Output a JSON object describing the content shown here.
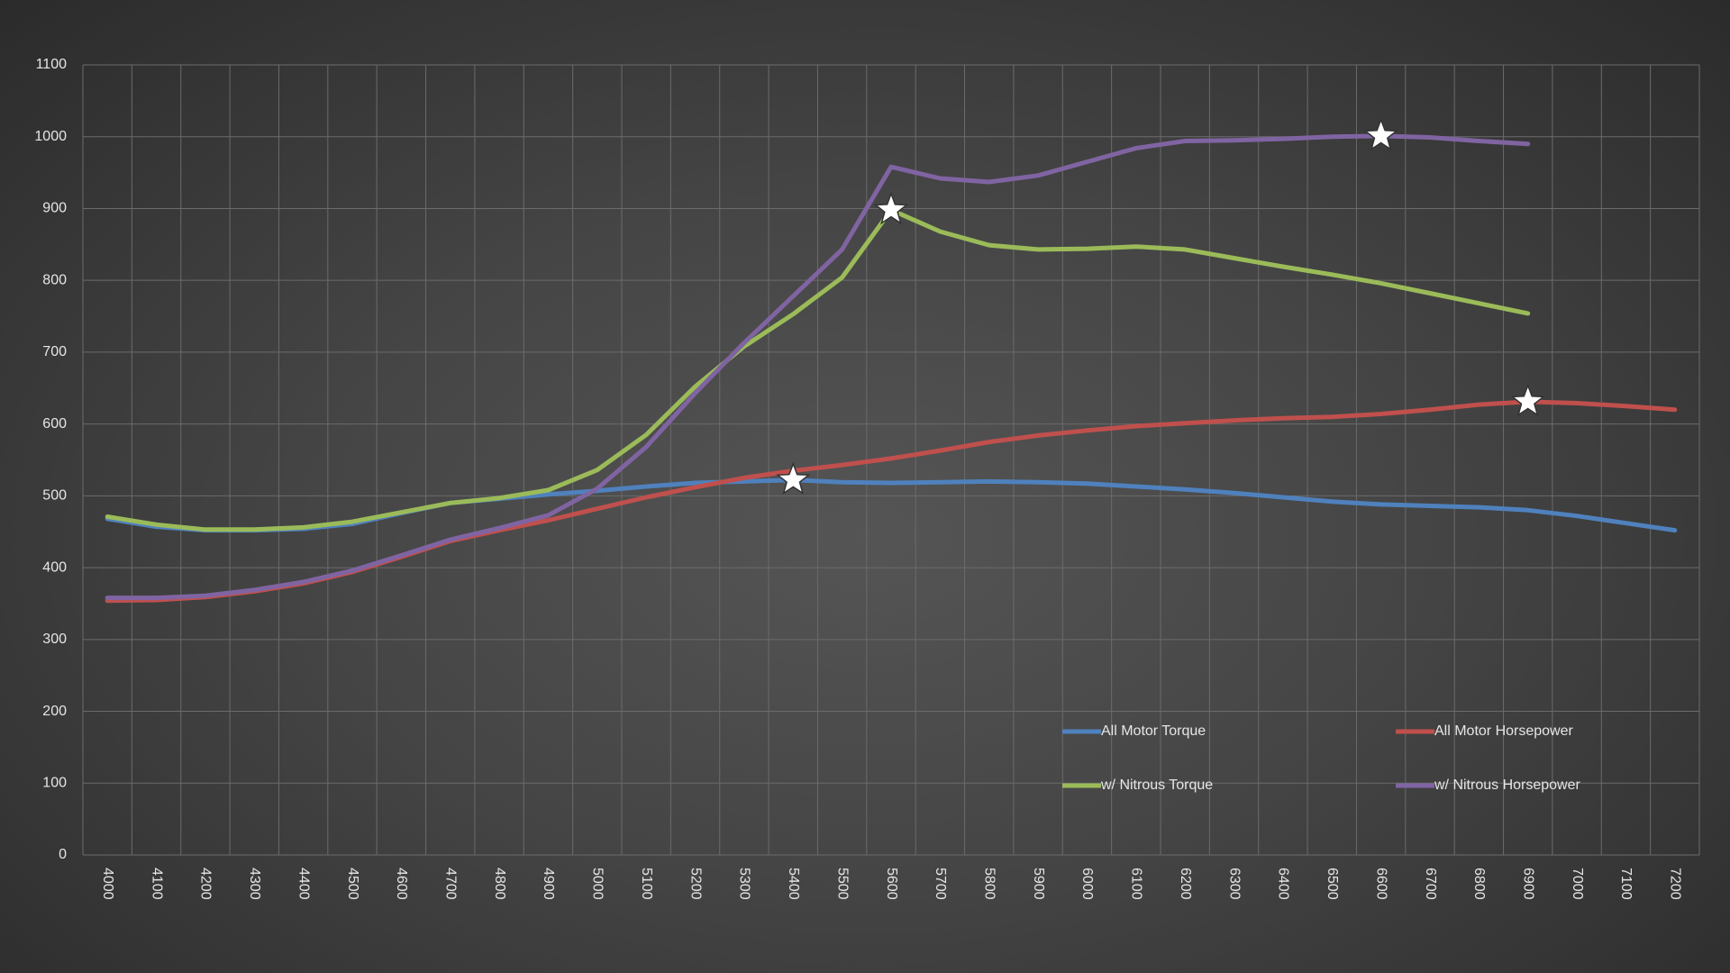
{
  "chart_data": {
    "type": "line",
    "categories": [
      4000,
      4100,
      4200,
      4300,
      4400,
      4500,
      4600,
      4700,
      4800,
      4900,
      5000,
      5100,
      5200,
      5300,
      5400,
      5500,
      5600,
      5700,
      5800,
      5900,
      6000,
      6100,
      6200,
      6300,
      6400,
      6500,
      6600,
      6700,
      6800,
      6900,
      7000,
      7100,
      7200
    ],
    "ylim": [
      0,
      1100
    ],
    "yticks": [
      0,
      100,
      200,
      300,
      400,
      500,
      600,
      700,
      800,
      900,
      1000,
      1100
    ],
    "grid": true,
    "series": [
      {
        "name": "All Motor Torque",
        "color": "#4f81bd",
        "peak": 5400,
        "values": [
          468,
          457,
          452,
          452,
          454,
          461,
          476,
          490,
          496,
          502,
          507,
          513,
          518,
          520,
          522,
          519,
          518,
          519,
          520,
          519,
          517,
          513,
          509,
          504,
          498,
          492,
          488,
          486,
          484,
          480,
          472,
          462,
          452
        ]
      },
      {
        "name": "All Motor Horsepower",
        "color": "#c0504d",
        "peak": 6900,
        "values": [
          354,
          355,
          359,
          367,
          378,
          394,
          415,
          437,
          452,
          466,
          482,
          498,
          512,
          525,
          535,
          543,
          552,
          563,
          575,
          584,
          591,
          597,
          601,
          605,
          608,
          610,
          614,
          620,
          627,
          631,
          629,
          625,
          620
        ]
      },
      {
        "name": "w/ Nitrous Torque",
        "color": "#9bbb59",
        "peak": 5600,
        "values": [
          471,
          460,
          453,
          453,
          456,
          464,
          477,
          490,
          497,
          508,
          536,
          585,
          652,
          708,
          753,
          804,
          898,
          868,
          849,
          843,
          844,
          847,
          843,
          831,
          819,
          808,
          796,
          782,
          768,
          754,
          null,
          null,
          null
        ]
      },
      {
        "name": "w/ Nitrous Horsepower",
        "color": "#8064a2",
        "peak": 6600,
        "values": [
          358,
          358,
          361,
          369,
          380,
          396,
          417,
          439,
          455,
          473,
          510,
          568,
          643,
          713,
          778,
          843,
          958,
          942,
          937,
          946,
          965,
          984,
          994,
          995,
          997,
          1000,
          1001,
          999,
          994,
          990,
          null,
          null,
          null
        ]
      }
    ]
  }
}
